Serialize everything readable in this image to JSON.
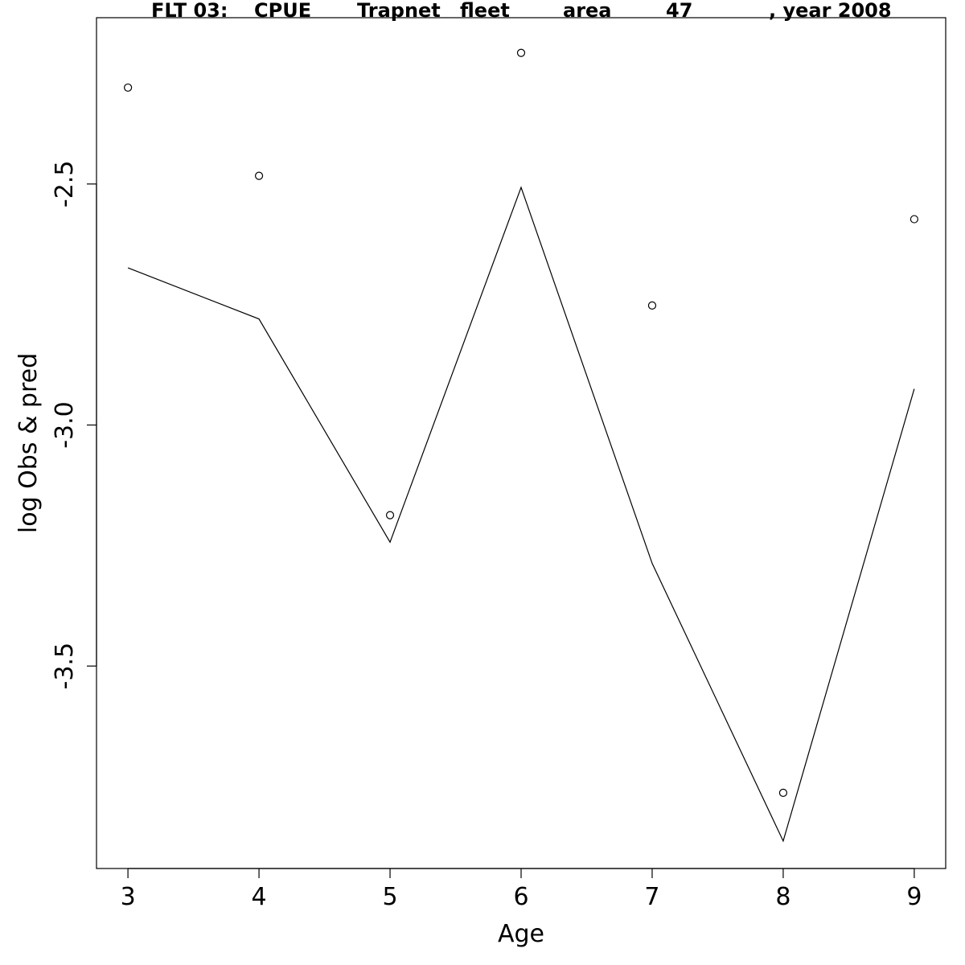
{
  "chart_data": {
    "type": "line",
    "title_parts": [
      "FLT 03:",
      "CPUE",
      "Trapnet",
      "fleet",
      "area",
      "47",
      ", year 2008"
    ],
    "xlabel": "Age",
    "ylabel": "log Obs & pred",
    "x_ticks": [
      3,
      4,
      5,
      6,
      7,
      8,
      9
    ],
    "y_ticks": [
      -2.5,
      -3.0,
      -3.5
    ],
    "y_tick_labels": [
      "-2.5",
      "-3.0",
      "-3.5"
    ],
    "xlim": [
      2.76,
      9.24
    ],
    "ylim": [
      -3.92,
      -2.155
    ],
    "grid": false,
    "legend": "none",
    "x": [
      3,
      4,
      5,
      6,
      7,
      8,
      9
    ],
    "series": [
      {
        "style": "points",
        "values": [
          -2.3,
          -2.483,
          -3.187,
          -2.228,
          -2.752,
          -3.763,
          -2.573
        ]
      },
      {
        "style": "line",
        "values": [
          -2.674,
          -2.78,
          -3.243,
          -2.507,
          -3.287,
          -3.863,
          -2.925
        ]
      }
    ],
    "colors": {
      "ink": "#000000",
      "background": "#ffffff"
    }
  }
}
